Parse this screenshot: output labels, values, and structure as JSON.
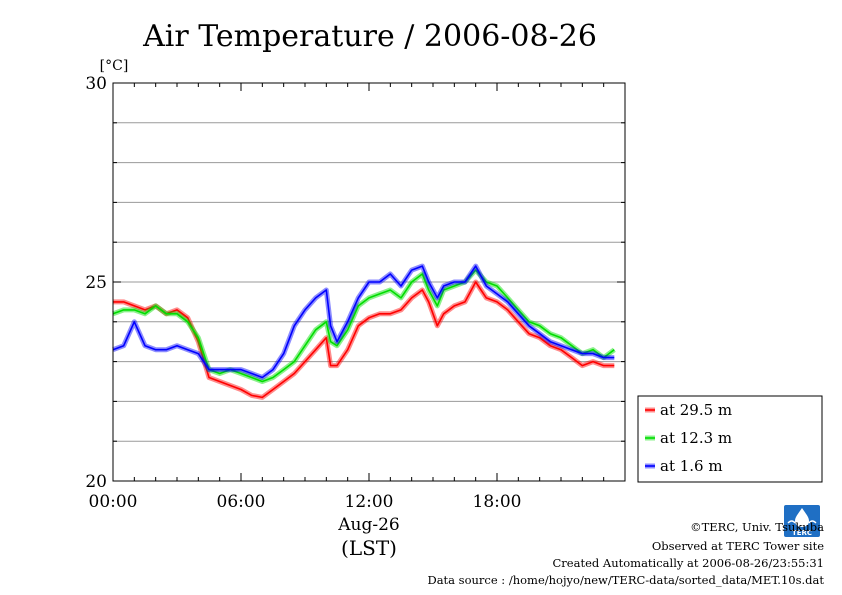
{
  "chart_data": {
    "type": "line",
    "title": "Air Temperature / 2006-08-26",
    "ylabel": "[°C]",
    "xlabel": "Aug-26",
    "timezone": "(LST)",
    "xlim": [
      0,
      24
    ],
    "ylim": [
      20,
      30
    ],
    "y_ticks": [
      20,
      25,
      30
    ],
    "y_tick_labels": [
      "20",
      "25",
      "30"
    ],
    "y_grid": [
      21,
      22,
      23,
      24,
      26,
      27,
      28,
      29
    ],
    "x_ticks": [
      0,
      6,
      12,
      18
    ],
    "x_tick_labels": [
      "00:00",
      "06:00",
      "12:00",
      "18:00"
    ],
    "grid": true,
    "legend_position": "lower-right-outside",
    "series": [
      {
        "name": "at 29.5 m",
        "color": "#ff0000",
        "x": [
          0,
          0.5,
          1,
          1.5,
          2,
          2.5,
          3,
          3.5,
          4,
          4.5,
          5,
          5.5,
          6,
          6.5,
          7,
          7.5,
          8,
          8.5,
          9,
          9.5,
          10,
          10.2,
          10.5,
          11,
          11.5,
          12,
          12.5,
          13,
          13.5,
          14,
          14.5,
          14.8,
          15.2,
          15.5,
          16,
          16.5,
          17,
          17.5,
          18,
          18.5,
          19,
          19.5,
          20,
          20.5,
          21,
          21.5,
          22,
          22.5,
          23,
          23.5
        ],
        "values": [
          24.5,
          24.5,
          24.4,
          24.3,
          24.4,
          24.2,
          24.3,
          24.1,
          23.5,
          22.6,
          22.5,
          22.4,
          22.3,
          22.15,
          22.1,
          22.3,
          22.5,
          22.7,
          23.0,
          23.3,
          23.6,
          22.9,
          22.9,
          23.3,
          23.9,
          24.1,
          24.2,
          24.2,
          24.3,
          24.6,
          24.8,
          24.5,
          23.9,
          24.2,
          24.4,
          24.5,
          25.0,
          24.6,
          24.5,
          24.3,
          24.0,
          23.7,
          23.6,
          23.4,
          23.3,
          23.1,
          22.9,
          23.0,
          22.9,
          22.9
        ]
      },
      {
        "name": "at 12.3 m",
        "color": "#00dd00",
        "x": [
          0,
          0.5,
          1,
          1.5,
          2,
          2.5,
          3,
          3.5,
          4,
          4.5,
          5,
          5.5,
          6,
          6.5,
          7,
          7.5,
          8,
          8.5,
          9,
          9.5,
          10,
          10.2,
          10.5,
          11,
          11.5,
          12,
          12.5,
          13,
          13.5,
          14,
          14.5,
          14.8,
          15.2,
          15.5,
          16,
          16.5,
          17,
          17.5,
          18,
          18.5,
          19,
          19.5,
          20,
          20.5,
          21,
          21.5,
          22,
          22.5,
          23,
          23.5
        ],
        "values": [
          24.2,
          24.3,
          24.3,
          24.2,
          24.4,
          24.2,
          24.2,
          24.0,
          23.6,
          22.8,
          22.7,
          22.8,
          22.7,
          22.6,
          22.5,
          22.6,
          22.8,
          23.0,
          23.4,
          23.8,
          24.0,
          23.5,
          23.4,
          23.8,
          24.4,
          24.6,
          24.7,
          24.8,
          24.6,
          25.0,
          25.2,
          24.8,
          24.4,
          24.8,
          24.9,
          25.0,
          25.3,
          25.0,
          24.9,
          24.6,
          24.3,
          24.0,
          23.9,
          23.7,
          23.6,
          23.4,
          23.2,
          23.3,
          23.1,
          23.3
        ]
      },
      {
        "name": "at 1.6 m",
        "color": "#0000ff",
        "x": [
          0,
          0.5,
          1,
          1.5,
          2,
          2.5,
          3,
          3.5,
          4,
          4.5,
          5,
          5.5,
          6,
          6.5,
          7,
          7.5,
          8,
          8.5,
          9,
          9.5,
          10,
          10.2,
          10.5,
          11,
          11.5,
          12,
          12.5,
          13,
          13.5,
          14,
          14.5,
          14.8,
          15.2,
          15.5,
          16,
          16.5,
          17,
          17.5,
          18,
          18.5,
          19,
          19.5,
          20,
          20.5,
          21,
          21.5,
          22,
          22.5,
          23,
          23.5
        ],
        "values": [
          23.3,
          23.4,
          24.0,
          23.4,
          23.3,
          23.3,
          23.4,
          23.3,
          23.2,
          22.8,
          22.8,
          22.8,
          22.8,
          22.7,
          22.6,
          22.8,
          23.2,
          23.9,
          24.3,
          24.6,
          24.8,
          23.9,
          23.5,
          24.0,
          24.6,
          25.0,
          25.0,
          25.2,
          24.9,
          25.3,
          25.4,
          25.0,
          24.6,
          24.9,
          25.0,
          25.0,
          25.4,
          24.9,
          24.7,
          24.5,
          24.2,
          23.9,
          23.7,
          23.5,
          23.4,
          23.3,
          23.2,
          23.2,
          23.1,
          23.1
        ]
      }
    ]
  },
  "footer": {
    "copyright": "©TERC, Univ. Tsukuba",
    "site": "Observed at TERC Tower site",
    "created": "Created Automatically at 2006-08-26/23:55:31",
    "source": "Data source : /home/hojyo/new/TERC-data/sorted_data/MET.10s.dat"
  },
  "logo": {
    "text": "TERC",
    "color": "#1f6fc4"
  }
}
